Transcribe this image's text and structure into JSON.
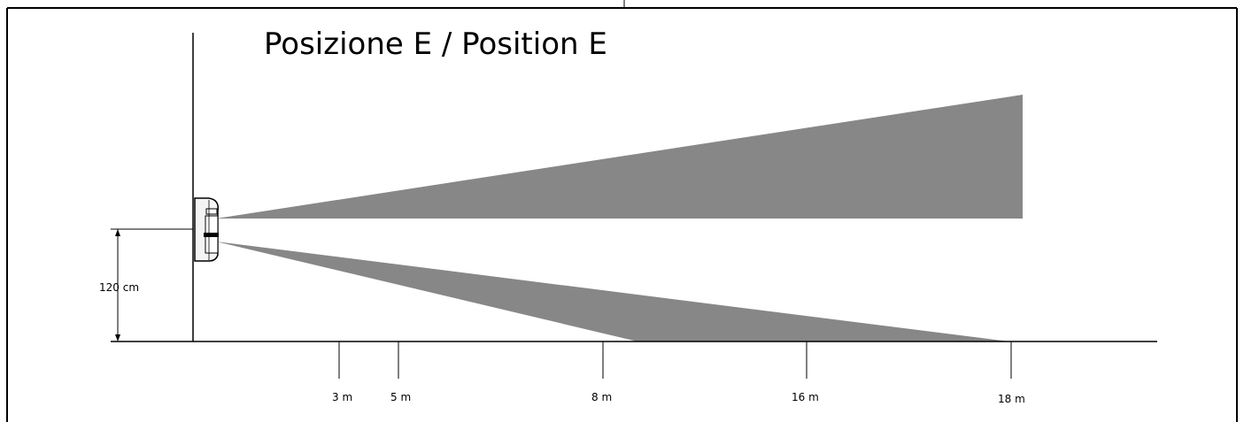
{
  "diagram": {
    "title": "Posizione E / Position E",
    "mounting_height_label": "120 cm",
    "distance_labels": [
      "3 m",
      "5 m",
      "8 m",
      "16 m",
      "18 m"
    ],
    "colors": {
      "beam": "#878787",
      "line": "#000000",
      "sensor_body": "#f4f4f4"
    }
  }
}
